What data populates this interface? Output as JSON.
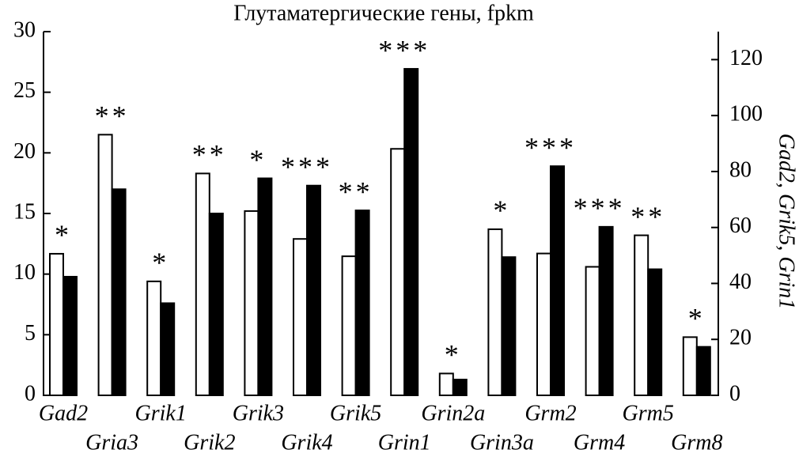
{
  "chart_data": {
    "type": "bar",
    "title": "Глутаматергические гены, fpkm",
    "y2_label": "Gad2, Grik5, Grin1",
    "categories": [
      "Gad2",
      "Gria3",
      "Grik1",
      "Grik2",
      "Grik3",
      "Grik4",
      "Grik5",
      "Grin1",
      "Grin2a",
      "Grin3a",
      "Grm2",
      "Grm4",
      "Grm5",
      "Grm8"
    ],
    "annotations": [
      "*",
      "**",
      "*",
      "**",
      "*",
      "***",
      "**",
      "***",
      "*",
      "*",
      "***",
      "***",
      "**",
      "*"
    ],
    "series": [
      {
        "color": "#ffffff",
        "values": [
          null,
          21.5,
          9.4,
          18.3,
          15.2,
          12.9,
          null,
          null,
          1.8,
          13.7,
          11.7,
          10.6,
          13.2,
          4.8
        ]
      },
      {
        "color": "#000000",
        "values": [
          null,
          17.0,
          7.6,
          15.0,
          17.9,
          17.3,
          null,
          null,
          1.3,
          11.4,
          18.9,
          13.9,
          10.4,
          4.0
        ]
      },
      {
        "color": "#ffffff",
        "axis": "y2",
        "values": [
          50.6,
          null,
          null,
          null,
          null,
          null,
          49.7,
          88.1,
          null,
          null,
          null,
          null,
          null,
          null
        ]
      },
      {
        "color": "#000000",
        "axis": "y2",
        "values": [
          42.4,
          null,
          null,
          null,
          null,
          null,
          66.1,
          116.7,
          null,
          null,
          null,
          null,
          null,
          null
        ]
      }
    ],
    "ylim": [
      0,
      30
    ],
    "yticks": [
      0,
      5,
      10,
      15,
      20,
      25,
      30
    ],
    "y2lim": [
      0,
      130
    ],
    "y2ticks": [
      0,
      20,
      40,
      60,
      80,
      100,
      120
    ]
  }
}
